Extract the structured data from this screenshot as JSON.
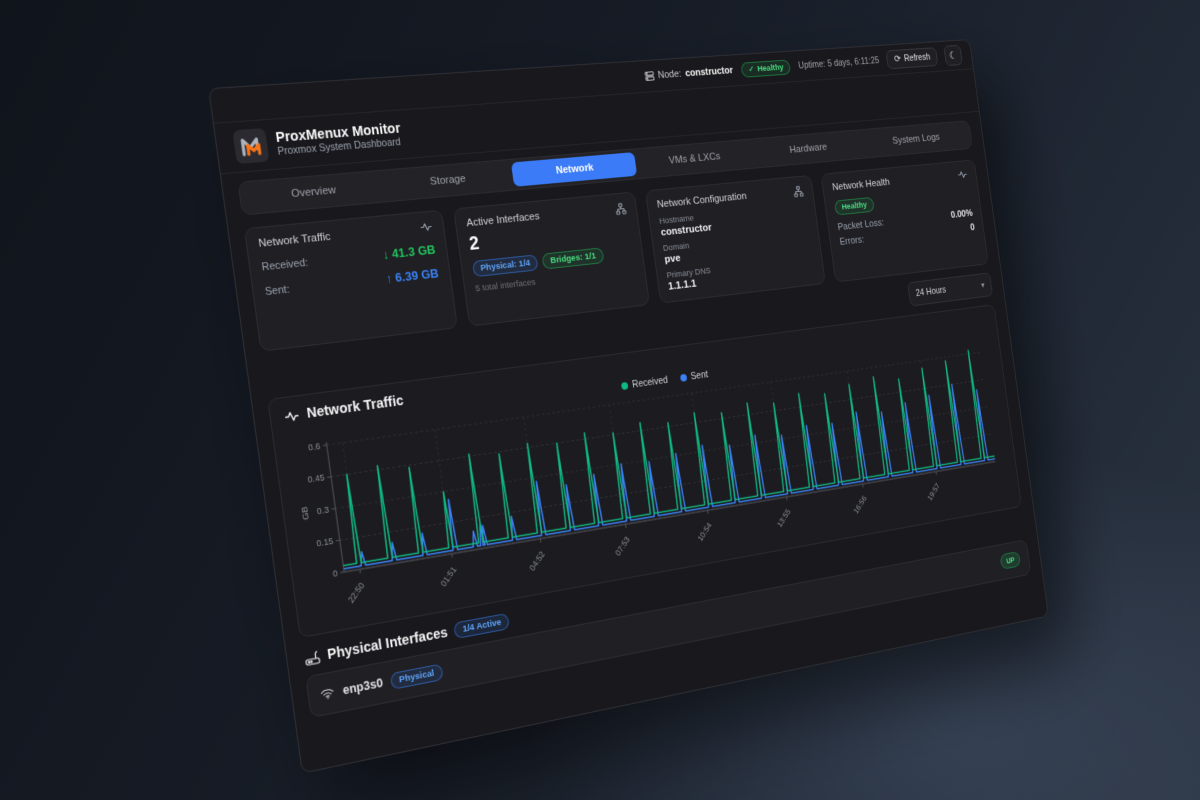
{
  "topbar": {
    "node_label": "Node:",
    "node_value": "constructor",
    "health_badge": "Healthy",
    "uptime": "Uptime: 5 days, 6:11:25",
    "refresh_label": "Refresh"
  },
  "header": {
    "title": "ProxMenux Monitor",
    "subtitle": "Proxmox System Dashboard"
  },
  "tabs": [
    {
      "label": "Overview"
    },
    {
      "label": "Storage"
    },
    {
      "label": "Network"
    },
    {
      "label": "VMs & LXCs"
    },
    {
      "label": "Hardware"
    },
    {
      "label": "System Logs"
    }
  ],
  "cards": {
    "traffic": {
      "title": "Network Traffic",
      "received_label": "Received:",
      "received_value": "↓ 41.3 GB",
      "sent_label": "Sent:",
      "sent_value": "↑ 6.39 GB"
    },
    "interfaces": {
      "title": "Active Interfaces",
      "count": "2",
      "physical_badge": "Physical: 1/4",
      "bridges_badge": "Bridges: 1/1",
      "total": "5 total interfaces"
    },
    "config": {
      "title": "Network Configuration",
      "hostname_label": "Hostname",
      "hostname": "constructor",
      "domain_label": "Domain",
      "domain": "pve",
      "dns_label": "Primary DNS",
      "dns": "1.1.1.1"
    },
    "health": {
      "title": "Network Health",
      "status_badge": "Healthy",
      "packet_loss_label": "Packet Loss:",
      "packet_loss": "0.00%",
      "errors_label": "Errors:",
      "errors": "0"
    }
  },
  "timeframe": {
    "selected": "24 Hours"
  },
  "chart_section": {
    "title": "Network Traffic"
  },
  "chart_data": {
    "type": "line",
    "title": "Network Traffic",
    "ylabel": "GB",
    "ylim": [
      0,
      0.6
    ],
    "yticks": [
      0,
      0.15,
      0.3,
      0.45,
      0.6
    ],
    "ytick_labels": [
      "0",
      "0.15",
      "0.3",
      "0.45",
      "0.6"
    ],
    "x_range_hours": 24,
    "x_tick_hours": [
      0,
      3,
      6,
      9,
      12,
      15,
      18,
      21
    ],
    "x_tick_labels": [
      "22:50",
      "01:51",
      "04:52",
      "07:53",
      "10:54",
      "13:55",
      "16:56",
      "19:57"
    ],
    "grid": "dashed",
    "legend_position": "top-center",
    "series": [
      {
        "name": "Received",
        "color": "#10b981",
        "baseline_gb": 0.03,
        "spike_interval_hours": 1,
        "spikes_gb": [
          0.45,
          0.47,
          0.44,
          0.3,
          0.46,
          0.44,
          0.47,
          0.45,
          0.48,
          0.46,
          0.49,
          0.47,
          0.5,
          0.48,
          0.51,
          0.49,
          0.52,
          0.5,
          0.53,
          0.55,
          0.52,
          0.56,
          0.58,
          0.62
        ],
        "extra_spikes": []
      },
      {
        "name": "Sent",
        "color": "#3b82f6",
        "baseline_gb": 0.015,
        "spike_interval_hours": 1,
        "spikes_gb": [
          0.08,
          0.1,
          0.12,
          0.26,
          0.11,
          0.13,
          0.28,
          0.24,
          0.27,
          0.3,
          0.29,
          0.31,
          0.33,
          0.31,
          0.34,
          0.32,
          0.35,
          0.34,
          0.38,
          0.36,
          0.39,
          0.41,
          0.45,
          0.4
        ],
        "extra_spikes": [
          {
            "hour": 4.3,
            "gb": 0.09
          },
          {
            "hour": 4.55,
            "gb": 0.12
          }
        ]
      }
    ]
  },
  "physical_section": {
    "title": "Physical Interfaces",
    "active_badge": "1/4 Active"
  },
  "interface_row": {
    "name": "enp3s0",
    "type_badge": "Physical",
    "status_badge": "UP"
  },
  "colors": {
    "accent_blue": "#3b7bf8",
    "green": "#22c55e",
    "received_line": "#10b981",
    "sent_line": "#3b82f6"
  }
}
